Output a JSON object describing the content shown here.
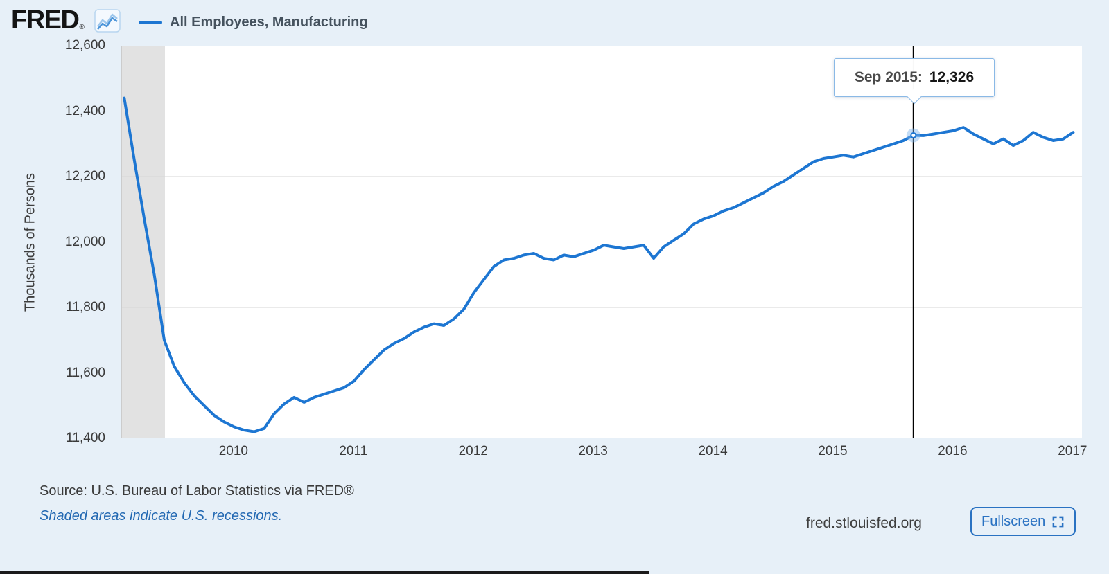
{
  "header": {
    "logo": "FRED",
    "registered": "®",
    "legend": {
      "label": "All Employees, Manufacturing"
    }
  },
  "chart_data": {
    "type": "line",
    "title": "All Employees, Manufacturing",
    "ylabel": "Thousands of Persons",
    "xlabel": "",
    "ylim": [
      11400,
      12600
    ],
    "x_range": [
      2009.064,
      2017.073
    ],
    "grid": true,
    "legend_position": "top-left",
    "line_color": "#1d76d2",
    "grid_color": "#d6d6d6",
    "recession_band_color": "#e2e2e2",
    "recession_band_edge_color": "#c9c9c9",
    "crosshair_color": "#000000",
    "recession_bands": [
      {
        "start": 2009.064,
        "end": 2009.417
      }
    ],
    "y_ticks": [
      {
        "value": 12600,
        "label": "12,600"
      },
      {
        "value": 12400,
        "label": "12,400"
      },
      {
        "value": 12200,
        "label": "12,200"
      },
      {
        "value": 12000,
        "label": "12,000"
      },
      {
        "value": 11800,
        "label": "11,800"
      },
      {
        "value": 11600,
        "label": "11,600"
      },
      {
        "value": 11400,
        "label": "11,400"
      }
    ],
    "x_ticks": [
      {
        "value": 2010,
        "label": "2010"
      },
      {
        "value": 2011,
        "label": "2011"
      },
      {
        "value": 2012,
        "label": "2012"
      },
      {
        "value": 2013,
        "label": "2013"
      },
      {
        "value": 2014,
        "label": "2014"
      },
      {
        "value": 2015,
        "label": "2015"
      },
      {
        "value": 2016,
        "label": "2016"
      },
      {
        "value": 2017,
        "label": "2017"
      }
    ],
    "series": [
      {
        "name": "All Employees, Manufacturing",
        "dates": [
          "2009-02",
          "2009-03",
          "2009-04",
          "2009-05",
          "2009-06",
          "2009-07",
          "2009-08",
          "2009-09",
          "2009-10",
          "2009-11",
          "2009-12",
          "2010-01",
          "2010-02",
          "2010-03",
          "2010-04",
          "2010-05",
          "2010-06",
          "2010-07",
          "2010-08",
          "2010-09",
          "2010-10",
          "2010-11",
          "2010-12",
          "2011-01",
          "2011-02",
          "2011-03",
          "2011-04",
          "2011-05",
          "2011-06",
          "2011-07",
          "2011-08",
          "2011-09",
          "2011-10",
          "2011-11",
          "2011-12",
          "2012-01",
          "2012-02",
          "2012-03",
          "2012-04",
          "2012-05",
          "2012-06",
          "2012-07",
          "2012-08",
          "2012-09",
          "2012-10",
          "2012-11",
          "2012-12",
          "2013-01",
          "2013-02",
          "2013-03",
          "2013-04",
          "2013-05",
          "2013-06",
          "2013-07",
          "2013-08",
          "2013-09",
          "2013-10",
          "2013-11",
          "2013-12",
          "2014-01",
          "2014-02",
          "2014-03",
          "2014-04",
          "2014-05",
          "2014-06",
          "2014-07",
          "2014-08",
          "2014-09",
          "2014-10",
          "2014-11",
          "2014-12",
          "2015-01",
          "2015-02",
          "2015-03",
          "2015-04",
          "2015-05",
          "2015-06",
          "2015-07",
          "2015-08",
          "2015-09",
          "2015-10",
          "2015-11",
          "2015-12",
          "2016-01",
          "2016-02",
          "2016-03",
          "2016-04",
          "2016-05",
          "2016-06",
          "2016-07",
          "2016-08",
          "2016-09",
          "2016-10",
          "2016-11",
          "2016-12",
          "2017-01"
        ],
        "values": [
          12440,
          12250,
          12070,
          11900,
          11700,
          11620,
          11570,
          11530,
          11500,
          11470,
          11450,
          11435,
          11425,
          11420,
          11430,
          11475,
          11505,
          11525,
          11510,
          11525,
          11535,
          11545,
          11555,
          11575,
          11610,
          11640,
          11670,
          11690,
          11705,
          11725,
          11740,
          11750,
          11745,
          11765,
          11795,
          11845,
          11885,
          11925,
          11945,
          11950,
          11960,
          11965,
          11950,
          11945,
          11960,
          11955,
          11965,
          11975,
          11990,
          11985,
          11980,
          11985,
          11990,
          11950,
          11985,
          12005,
          12025,
          12055,
          12070,
          12080,
          12095,
          12105,
          12120,
          12135,
          12150,
          12170,
          12185,
          12205,
          12225,
          12245,
          12255,
          12260,
          12265,
          12260,
          12270,
          12280,
          12290,
          12300,
          12310,
          12326,
          12325,
          12330,
          12335,
          12340,
          12350,
          12330,
          12315,
          12300,
          12315,
          12295,
          12310,
          12335,
          12320,
          12310,
          12315,
          12335
        ]
      }
    ],
    "highlight": {
      "date": "2015-09",
      "value": 12326
    }
  },
  "tooltip": {
    "date": "Sep 2015:",
    "value": "12,326"
  },
  "footer": {
    "source": "Source: U.S. Bureau of Labor Statistics via FRED®",
    "note": "Shaded areas indicate U.S. recessions.",
    "site": "fred.stlouisfed.org",
    "fullscreen": "Fullscreen"
  }
}
